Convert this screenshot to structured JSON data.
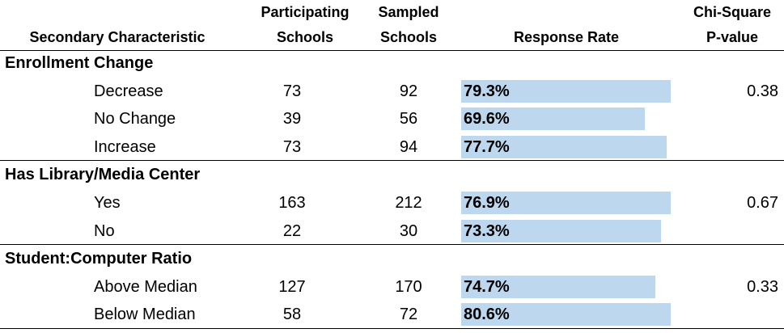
{
  "table": {
    "headers": {
      "characteristic": "Secondary Characteristic",
      "participating": [
        "Participating",
        "Schools"
      ],
      "sampled": [
        "Sampled",
        "Schools"
      ],
      "response_rate": "Response Rate",
      "p_value": [
        "Chi-Square",
        "P-value"
      ]
    },
    "groups": [
      {
        "label": "Enrollment Change",
        "p_value": 0.38,
        "rows": [
          {
            "label": "Decrease",
            "participating": 73,
            "sampled": 92,
            "response_rate": 79.3,
            "response_rate_label": "79.3%"
          },
          {
            "label": "No Change",
            "participating": 39,
            "sampled": 56,
            "response_rate": 69.6,
            "response_rate_label": "69.6%"
          },
          {
            "label": "Increase",
            "participating": 73,
            "sampled": 94,
            "response_rate": 77.7,
            "response_rate_label": "77.7%"
          }
        ]
      },
      {
        "label": "Has Library/Media Center",
        "p_value": 0.67,
        "rows": [
          {
            "label": "Yes",
            "participating": 163,
            "sampled": 212,
            "response_rate": 76.9,
            "response_rate_label": "76.9%"
          },
          {
            "label": "No",
            "participating": 22,
            "sampled": 30,
            "response_rate": 73.3,
            "response_rate_label": "73.3%"
          }
        ]
      },
      {
        "label": "Student:Computer Ratio",
        "p_value": 0.33,
        "rows": [
          {
            "label": "Above Median",
            "participating": 127,
            "sampled": 170,
            "response_rate": 74.7,
            "response_rate_label": "74.7%"
          },
          {
            "label": "Below Median",
            "participating": 58,
            "sampled": 72,
            "response_rate": 80.6,
            "response_rate_label": "80.6%"
          }
        ]
      }
    ]
  }
}
